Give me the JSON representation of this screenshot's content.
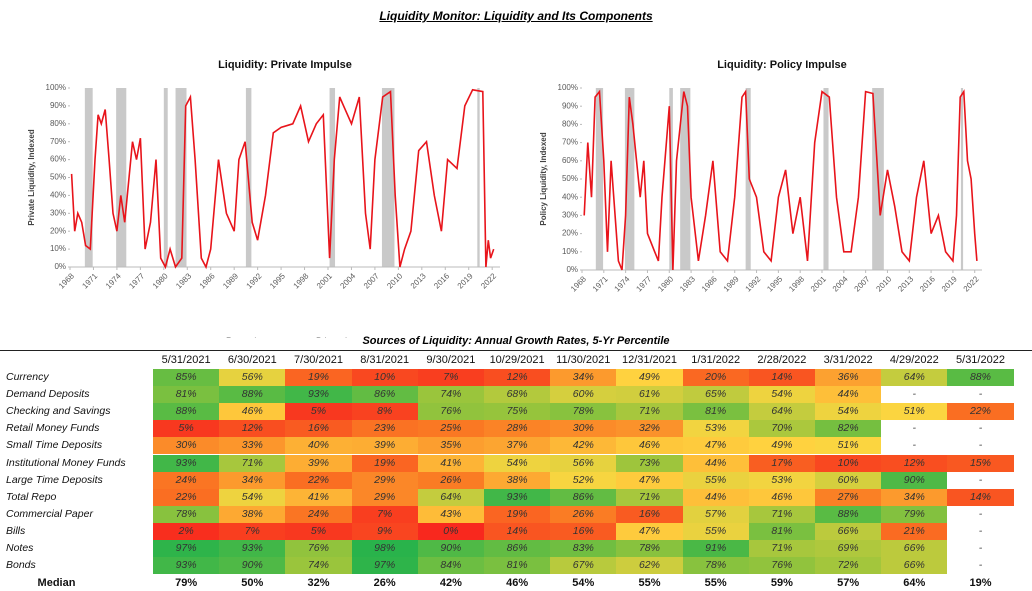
{
  "title": "Liquidity Monitor: Liquidity and Its Components",
  "chart_data": [
    {
      "type": "line",
      "title": "Liquidity: Private Impulse",
      "ylabel": "Private Liquidity, Indexed",
      "xlim": [
        1968,
        2023
      ],
      "ylim": [
        0,
        100
      ],
      "xticks": [
        1968,
        1971,
        1974,
        1977,
        1980,
        1983,
        1986,
        1989,
        1992,
        1995,
        1998,
        2001,
        2004,
        2007,
        2010,
        2013,
        2016,
        2019,
        2022
      ],
      "yticks": [
        {
          "value": 0,
          "label": "0%"
        },
        {
          "value": 10,
          "label": "10%"
        },
        {
          "value": 20,
          "label": "20%"
        },
        {
          "value": 30,
          "label": "30%"
        },
        {
          "value": 40,
          "label": "40%"
        },
        {
          "value": 50,
          "label": "50%"
        },
        {
          "value": 60,
          "label": "60%"
        },
        {
          "value": 70,
          "label": "70%"
        },
        {
          "value": 80,
          "label": "80%"
        },
        {
          "value": 90,
          "label": "90%"
        },
        {
          "value": 100,
          "label": "100%"
        }
      ],
      "legend": "bottom",
      "recessions": {
        "name": "Recessions",
        "color": "#c9c9c9",
        "ranges": [
          [
            1969.9,
            1970.9
          ],
          [
            1973.9,
            1975.2
          ],
          [
            1980,
            1980.5
          ],
          [
            1981.5,
            1982.9
          ],
          [
            1990.5,
            1991.2
          ],
          [
            2001.2,
            2001.9
          ],
          [
            2007.9,
            2009.5
          ],
          [
            2020.1,
            2020.4
          ]
        ]
      },
      "x": [
        1968.2,
        1968.6,
        1969,
        1969.5,
        1970,
        1970.6,
        1971.2,
        1971.6,
        1972,
        1972.5,
        1973,
        1973.5,
        1974,
        1974.5,
        1975,
        1976,
        1976.5,
        1977,
        1977.6,
        1978.3,
        1979,
        1979.6,
        1980.2,
        1980.8,
        1981.5,
        1982.3,
        1982.8,
        1983.4,
        1984,
        1984.8,
        1985.4,
        1986,
        1987,
        1988,
        1989,
        1989.6,
        1990.4,
        1991.3,
        1992,
        1993,
        1994,
        1995,
        1996.5,
        1997.5,
        1998.5,
        1999.5,
        2000.4,
        2001.2,
        2001.8,
        2002.5,
        2003,
        2004,
        2005,
        2005.8,
        2006.4,
        2007,
        2008,
        2009,
        2009.6,
        2010.2,
        2010.8,
        2011.6,
        2012.6,
        2013.6,
        2014.6,
        2015.5,
        2016.3,
        2017.5,
        2018.5,
        2019.5,
        2020.8,
        2021.2,
        2021.5,
        2021.8,
        2022.2
      ],
      "series": [
        {
          "name": "Private Impulse",
          "color": "#e8141b",
          "values": [
            52,
            20,
            30,
            25,
            12,
            10,
            60,
            85,
            80,
            88,
            60,
            30,
            20,
            40,
            25,
            70,
            60,
            72,
            10,
            25,
            60,
            5,
            0,
            10,
            0,
            5,
            90,
            95,
            60,
            5,
            0,
            10,
            60,
            30,
            20,
            60,
            70,
            25,
            15,
            40,
            75,
            78,
            80,
            90,
            70,
            80,
            85,
            5,
            60,
            95,
            90,
            80,
            95,
            30,
            10,
            60,
            95,
            98,
            40,
            0,
            10,
            20,
            65,
            70,
            40,
            20,
            60,
            55,
            90,
            99,
            98,
            0,
            15,
            5,
            10
          ]
        }
      ]
    },
    {
      "type": "line",
      "title": "Liquidity: Policy Impulse",
      "ylabel": "Policy Liquidity, Indexed",
      "xlim": [
        1968,
        2023
      ],
      "ylim": [
        0,
        100
      ],
      "xticks": [
        1968,
        1971,
        1974,
        1977,
        1980,
        1983,
        1986,
        1989,
        1992,
        1995,
        1998,
        2001,
        2004,
        2007,
        2010,
        2013,
        2016,
        2019,
        2022
      ],
      "yticks": [
        {
          "value": 0,
          "label": "0%"
        },
        {
          "value": 10,
          "label": "10%"
        },
        {
          "value": 20,
          "label": "20%"
        },
        {
          "value": 30,
          "label": "30%"
        },
        {
          "value": 40,
          "label": "40%"
        },
        {
          "value": 50,
          "label": "50%"
        },
        {
          "value": 60,
          "label": "60%"
        },
        {
          "value": 70,
          "label": "70%"
        },
        {
          "value": 80,
          "label": "80%"
        },
        {
          "value": 90,
          "label": "90%"
        },
        {
          "value": 100,
          "label": "100%"
        }
      ],
      "legend": "bottom",
      "recessions": {
        "name": "Recessions",
        "color": "#c9c9c9",
        "ranges": [
          [
            1969.9,
            1970.9
          ],
          [
            1973.9,
            1975.2
          ],
          [
            1980,
            1980.5
          ],
          [
            1981.5,
            1982.9
          ],
          [
            1990.5,
            1991.2
          ],
          [
            2001.2,
            2001.9
          ],
          [
            2007.9,
            2009.5
          ],
          [
            2020.1,
            2020.4
          ]
        ]
      },
      "x": [
        1968.3,
        1968.8,
        1969.3,
        1969.8,
        1970.4,
        1971,
        1971.5,
        1972,
        1973,
        1973.5,
        1974,
        1974.5,
        1975,
        1976,
        1976.5,
        1977,
        1978,
        1978.5,
        1979,
        1980,
        1980.5,
        1981,
        1982,
        1982.5,
        1983,
        1984,
        1985,
        1986,
        1987,
        1988,
        1989,
        1990,
        1990.5,
        1991,
        1992,
        1993,
        1994,
        1995,
        1996,
        1997,
        1998,
        1999,
        2000,
        2001,
        2002,
        2003,
        2004,
        2005,
        2006,
        2007,
        2008,
        2009,
        2010,
        2011,
        2012,
        2013,
        2014,
        2015,
        2016,
        2017,
        2018,
        2019,
        2019.5,
        2020,
        2020.5,
        2021,
        2021.5,
        2022,
        2022.3
      ],
      "series": [
        {
          "name": "Policy Impulse",
          "color": "#e8141b",
          "values": [
            30,
            70,
            40,
            95,
            98,
            60,
            10,
            60,
            5,
            0,
            30,
            95,
            80,
            40,
            60,
            20,
            10,
            5,
            40,
            90,
            0,
            60,
            98,
            90,
            40,
            5,
            30,
            60,
            10,
            5,
            40,
            95,
            98,
            50,
            40,
            10,
            5,
            40,
            55,
            20,
            40,
            5,
            70,
            98,
            95,
            40,
            10,
            10,
            40,
            98,
            97,
            30,
            55,
            35,
            10,
            5,
            40,
            60,
            20,
            30,
            10,
            5,
            30,
            95,
            98,
            60,
            50,
            20,
            5
          ]
        }
      ]
    }
  ],
  "table": {
    "title": "Sources of Liquidity: Annual Growth Rates, 5-Yr Percentile",
    "columns": [
      "5/31/2021",
      "6/30/2021",
      "7/30/2021",
      "8/31/2021",
      "9/30/2021",
      "10/29/2021",
      "11/30/2021",
      "12/31/2021",
      "1/31/2022",
      "2/28/2022",
      "3/31/2022",
      "4/29/2022",
      "5/31/2022"
    ],
    "rows": [
      {
        "label": "Currency",
        "cells": [
          "85%",
          "56%",
          "19%",
          "10%",
          "7%",
          "12%",
          "34%",
          "49%",
          "20%",
          "14%",
          "36%",
          "64%",
          "88%"
        ]
      },
      {
        "label": "Demand Deposits",
        "cells": [
          "81%",
          "88%",
          "93%",
          "86%",
          "74%",
          "68%",
          "60%",
          "61%",
          "65%",
          "54%",
          "44%",
          "-",
          "-"
        ]
      },
      {
        "label": "Checking and Savings",
        "cells": [
          "88%",
          "46%",
          "5%",
          "8%",
          "76%",
          "75%",
          "78%",
          "71%",
          "81%",
          "64%",
          "54%",
          "51%",
          "22%"
        ]
      },
      {
        "label": "Retail Money Funds",
        "cells": [
          "5%",
          "12%",
          "16%",
          "23%",
          "25%",
          "28%",
          "30%",
          "32%",
          "53%",
          "70%",
          "82%",
          "-",
          "-"
        ]
      },
      {
        "label": "Small Time Deposits",
        "cells": [
          "30%",
          "33%",
          "40%",
          "39%",
          "35%",
          "37%",
          "42%",
          "46%",
          "47%",
          "49%",
          "51%",
          "-",
          "-"
        ]
      },
      {
        "label": "Institutional Money Funds",
        "cells": [
          "93%",
          "71%",
          "39%",
          "19%",
          "41%",
          "54%",
          "56%",
          "73%",
          "44%",
          "17%",
          "10%",
          "12%",
          "15%"
        ]
      },
      {
        "label": "Large Time Deposits",
        "cells": [
          "24%",
          "34%",
          "22%",
          "29%",
          "26%",
          "38%",
          "52%",
          "47%",
          "55%",
          "53%",
          "60%",
          "90%",
          "-"
        ]
      },
      {
        "label": "Total Repo",
        "cells": [
          "22%",
          "54%",
          "41%",
          "29%",
          "64%",
          "93%",
          "86%",
          "71%",
          "44%",
          "46%",
          "27%",
          "34%",
          "14%"
        ]
      },
      {
        "label": "Commercial Paper",
        "cells": [
          "78%",
          "38%",
          "24%",
          "7%",
          "43%",
          "19%",
          "26%",
          "16%",
          "57%",
          "71%",
          "88%",
          "79%",
          "-"
        ]
      },
      {
        "label": "Bills",
        "cells": [
          "2%",
          "7%",
          "5%",
          "9%",
          "0%",
          "14%",
          "16%",
          "47%",
          "55%",
          "81%",
          "66%",
          "21%",
          "-"
        ]
      },
      {
        "label": "Notes",
        "cells": [
          "97%",
          "93%",
          "76%",
          "98%",
          "90%",
          "86%",
          "83%",
          "78%",
          "91%",
          "71%",
          "69%",
          "66%",
          "-"
        ]
      },
      {
        "label": "Bonds",
        "cells": [
          "93%",
          "90%",
          "74%",
          "97%",
          "84%",
          "81%",
          "67%",
          "62%",
          "78%",
          "76%",
          "72%",
          "66%",
          "-"
        ]
      }
    ],
    "median": {
      "label": "Median",
      "cells": [
        "79%",
        "50%",
        "32%",
        "26%",
        "42%",
        "46%",
        "54%",
        "55%",
        "55%",
        "59%",
        "57%",
        "64%",
        "19%"
      ]
    }
  }
}
